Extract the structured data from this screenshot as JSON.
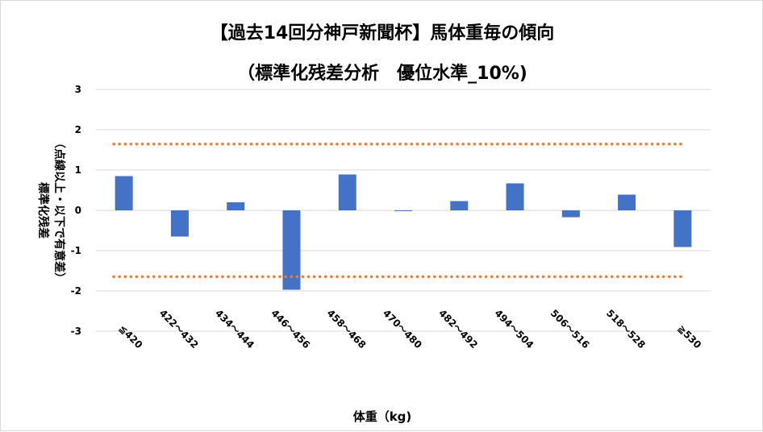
{
  "chart_data": {
    "type": "bar",
    "title": "【過去14回分神戸新聞杯】馬体重毎の傾向",
    "subtitle": "（標準化残差分析　優位水準_10%)",
    "xlabel": "体重（kg)",
    "ylabel": "標準化残差",
    "ylabel_note": "（点線以上・以下で有意差）",
    "categories": [
      "≦420",
      "422～432",
      "434～444",
      "446～456",
      "458～468",
      "470～480",
      "482～492",
      "494～504",
      "506～516",
      "518～528",
      "≧530"
    ],
    "values": [
      0.85,
      -0.65,
      0.2,
      -1.97,
      0.89,
      -0.02,
      0.23,
      0.67,
      -0.17,
      0.39,
      -0.91
    ],
    "ylim": [
      -3,
      3
    ],
    "yticks": [
      "3",
      "2",
      "1",
      "0",
      "-1",
      "-2",
      "-3"
    ],
    "threshold": 1.645,
    "bar_color": "#4472c4",
    "threshold_color": "#ed7d31",
    "grid": true,
    "legend": "none"
  }
}
